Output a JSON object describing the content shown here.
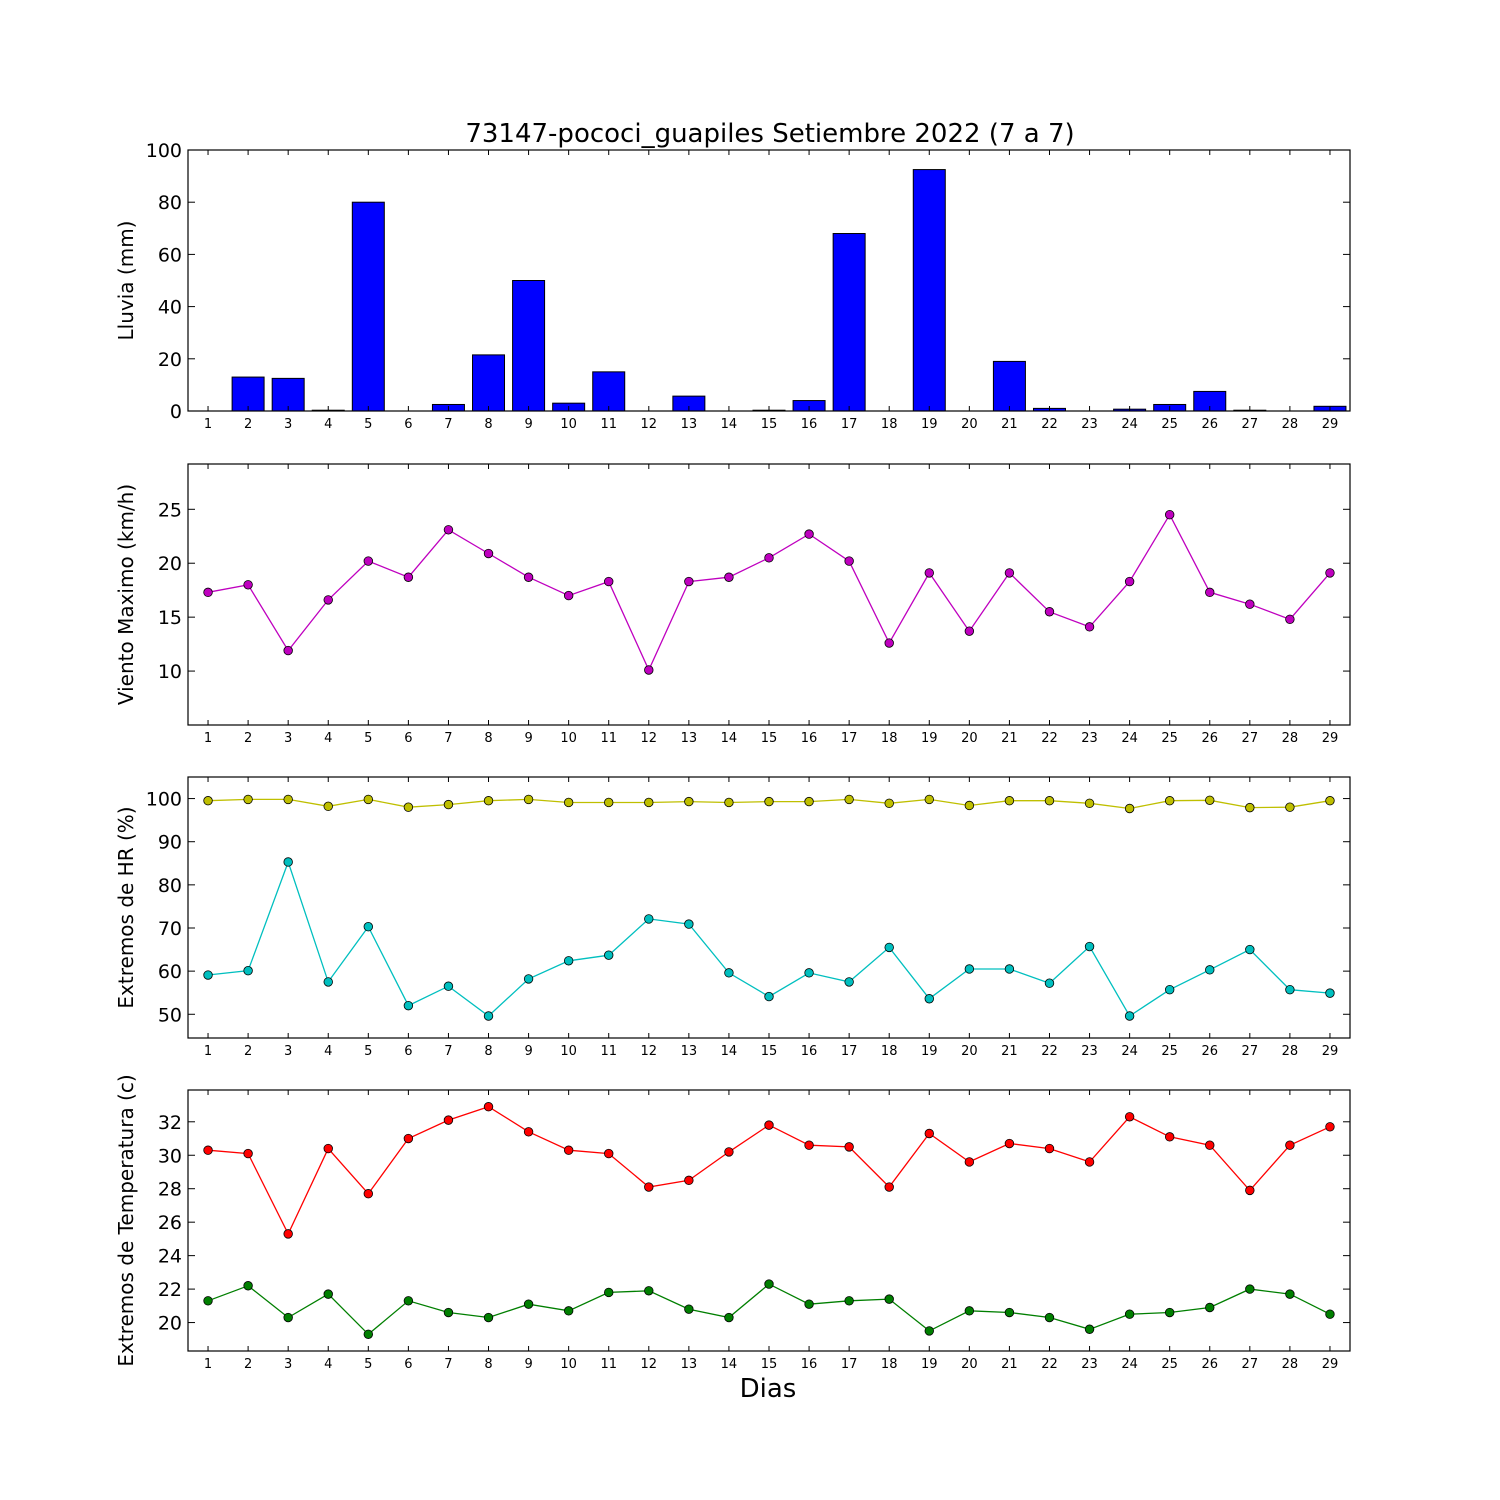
{
  "figure": {
    "title": "73147-pococi_guapiles Setiembre 2022  (7 a 7)",
    "xlabel": "Dias"
  },
  "chart_data": [
    {
      "type": "bar",
      "ylabel": "Lluvia (mm)",
      "ylim": [
        0,
        100
      ],
      "yticks": [
        0,
        20,
        40,
        60,
        80,
        100
      ],
      "x": [
        1,
        2,
        3,
        4,
        5,
        6,
        7,
        8,
        9,
        10,
        11,
        12,
        13,
        14,
        15,
        16,
        17,
        18,
        19,
        20,
        21,
        22,
        23,
        24,
        25,
        26,
        27,
        28,
        29
      ],
      "series": [
        {
          "color": "#0000ff",
          "values": [
            0,
            13,
            12.5,
            0.3,
            80,
            0,
            2.5,
            21.5,
            50,
            3,
            15,
            0,
            5.7,
            0,
            0.3,
            4,
            68,
            0,
            92.5,
            0,
            19,
            1,
            0,
            0.7,
            2.5,
            7.5,
            0.3,
            0,
            1.8
          ]
        }
      ]
    },
    {
      "type": "line",
      "ylabel": "Viento Maximo (km/h)",
      "ylim": [
        5,
        29.2
      ],
      "yticks": [
        10,
        15,
        20,
        25
      ],
      "x": [
        1,
        2,
        3,
        4,
        5,
        6,
        7,
        8,
        9,
        10,
        11,
        12,
        13,
        14,
        15,
        16,
        17,
        18,
        19,
        20,
        21,
        22,
        23,
        24,
        25,
        26,
        27,
        28,
        29
      ],
      "series": [
        {
          "color": "#bf00bf",
          "values": [
            17.3,
            18,
            11.9,
            16.6,
            20.2,
            18.7,
            23.1,
            20.9,
            18.7,
            17,
            18.3,
            10.1,
            18.3,
            18.7,
            20.5,
            22.7,
            20.2,
            12.6,
            19.1,
            13.7,
            19.1,
            15.5,
            14.1,
            18.3,
            24.5,
            17.3,
            16.2,
            14.8,
            19.1
          ]
        }
      ]
    },
    {
      "type": "line",
      "ylabel": "Extremos de HR (%)",
      "ylim": [
        44.5,
        105
      ],
      "yticks": [
        50,
        60,
        70,
        80,
        90,
        100
      ],
      "x": [
        1,
        2,
        3,
        4,
        5,
        6,
        7,
        8,
        9,
        10,
        11,
        12,
        13,
        14,
        15,
        16,
        17,
        18,
        19,
        20,
        21,
        22,
        23,
        24,
        25,
        26,
        27,
        28,
        29
      ],
      "series": [
        {
          "color": "#bfbf00",
          "values": [
            99.5,
            99.8,
            99.8,
            98.2,
            99.8,
            98,
            98.6,
            99.5,
            99.8,
            99.1,
            99.1,
            99.1,
            99.3,
            99.1,
            99.3,
            99.3,
            99.8,
            98.9,
            99.8,
            98.4,
            99.5,
            99.5,
            98.9,
            97.7,
            99.5,
            99.6,
            97.9,
            98,
            99.5
          ]
        },
        {
          "color": "#00bfbf",
          "values": [
            59.1,
            60.1,
            85.3,
            57.5,
            70.3,
            52,
            56.5,
            49.6,
            58.2,
            62.4,
            63.7,
            72.1,
            70.9,
            59.6,
            54.1,
            59.6,
            57.5,
            65.5,
            53.6,
            60.5,
            60.5,
            57.2,
            65.7,
            49.6,
            55.7,
            60.3,
            65,
            55.7,
            54.9
          ]
        }
      ]
    },
    {
      "type": "line",
      "ylabel": "Extremos de Temperatura (c)",
      "ylim": [
        18.3,
        33.9
      ],
      "yticks": [
        20,
        22,
        24,
        26,
        28,
        30,
        32
      ],
      "x": [
        1,
        2,
        3,
        4,
        5,
        6,
        7,
        8,
        9,
        10,
        11,
        12,
        13,
        14,
        15,
        16,
        17,
        18,
        19,
        20,
        21,
        22,
        23,
        24,
        25,
        26,
        27,
        28,
        29
      ],
      "series": [
        {
          "color": "#ff0000",
          "values": [
            30.3,
            30.1,
            25.3,
            30.4,
            27.7,
            31,
            32.1,
            32.9,
            31.4,
            30.3,
            30.1,
            28.1,
            28.5,
            30.2,
            31.8,
            30.6,
            30.5,
            28.1,
            31.3,
            29.6,
            30.7,
            30.4,
            29.6,
            32.3,
            31.1,
            30.6,
            27.9,
            30.6,
            31.7
          ]
        },
        {
          "color": "#007f00",
          "values": [
            21.3,
            22.2,
            20.3,
            21.7,
            19.3,
            21.3,
            20.6,
            20.3,
            21.1,
            20.7,
            21.8,
            21.9,
            20.8,
            20.3,
            22.3,
            21.1,
            21.3,
            21.4,
            19.5,
            20.7,
            20.6,
            20.3,
            19.6,
            20.5,
            20.6,
            20.9,
            22,
            21.7,
            20.5
          ]
        }
      ]
    }
  ]
}
